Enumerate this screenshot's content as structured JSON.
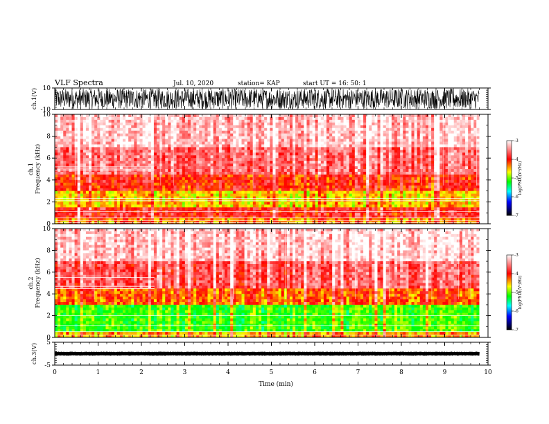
{
  "header": {
    "title": "VLF Spectra",
    "date": "Jul. 10, 2020",
    "station": "station= KAP",
    "start": "start UT = 16: 50: 1"
  },
  "chart_data": {
    "type": "heatmap",
    "x": {
      "label": "Time (min)",
      "range": [
        0,
        10
      ],
      "ticks": [
        "0",
        "1",
        "2",
        "3",
        "4",
        "5",
        "6",
        "7",
        "8",
        "9",
        "10"
      ],
      "data_end": 9.8
    },
    "panels": [
      {
        "name": "ch.1(V)",
        "kind": "waveform",
        "ylabel": "ch.1(V)",
        "ylim": [
          -10,
          10
        ],
        "yticks": [
          "10",
          "-10"
        ],
        "color": "#000000"
      },
      {
        "name": "ch.1",
        "kind": "spectrogram",
        "ylabel": "ch.1 Frequency (kHz)",
        "ylim": [
          0,
          10
        ],
        "yticks": [
          "0",
          "2",
          "4",
          "6",
          "8",
          "10"
        ],
        "color_levels_by_freq_khz": [
          {
            "from": 0,
            "to": 0.5,
            "level": -4.2
          },
          {
            "from": 0.5,
            "to": 1.5,
            "level": -3.8
          },
          {
            "from": 1.5,
            "to": 3.0,
            "level": -4.4
          },
          {
            "from": 3.0,
            "to": 4.5,
            "level": -3.9
          },
          {
            "from": 4.5,
            "to": 7.0,
            "level": -3.5
          },
          {
            "from": 7.0,
            "to": 10.0,
            "level": -3.2
          }
        ],
        "horizontal_lines_khz": [
          2.1,
          2.3,
          1.1,
          0.55,
          0.3,
          0.1
        ],
        "early_lines_until_min": 2.3,
        "early_lines_khz": [
          5.0,
          5.2,
          4.9
        ]
      },
      {
        "name": "ch.2",
        "kind": "spectrogram",
        "ylabel": "ch.2 Frequency (kHz)",
        "ylim": [
          0,
          10
        ],
        "yticks": [
          "0",
          "2",
          "4",
          "6",
          "8",
          "10"
        ],
        "color_levels_by_freq_khz": [
          {
            "from": 0,
            "to": 0.5,
            "level": -4.3
          },
          {
            "from": 0.5,
            "to": 3.0,
            "level": -5.0
          },
          {
            "from": 3.0,
            "to": 4.5,
            "level": -4.1
          },
          {
            "from": 4.5,
            "to": 7.0,
            "level": -3.6
          },
          {
            "from": 7.0,
            "to": 10.0,
            "level": -3.2
          }
        ],
        "horizontal_lines_khz": [
          2.0,
          1.1,
          0.55,
          0.2
        ],
        "early_lines_until_min": 2.3,
        "early_lines_khz": [
          4.5,
          4.7,
          5.5
        ]
      },
      {
        "name": "ch.3(V)",
        "kind": "waveform",
        "ylabel": "ch.3(V)",
        "ylim": [
          -5,
          5
        ],
        "yticks": [
          "5",
          "-5"
        ],
        "amplitude": 0.8,
        "color": "#000000"
      }
    ],
    "colorbar": {
      "label": "log(PSD)(V²/Hz)",
      "range": [
        -7,
        -3
      ],
      "ticks": [
        "-3",
        "-4",
        "-5",
        "-6",
        "-7"
      ],
      "colors": [
        "#ffffff",
        "#ff0000",
        "#ffff00",
        "#00ff00",
        "#00ffff",
        "#0000ff",
        "#000000"
      ]
    }
  }
}
